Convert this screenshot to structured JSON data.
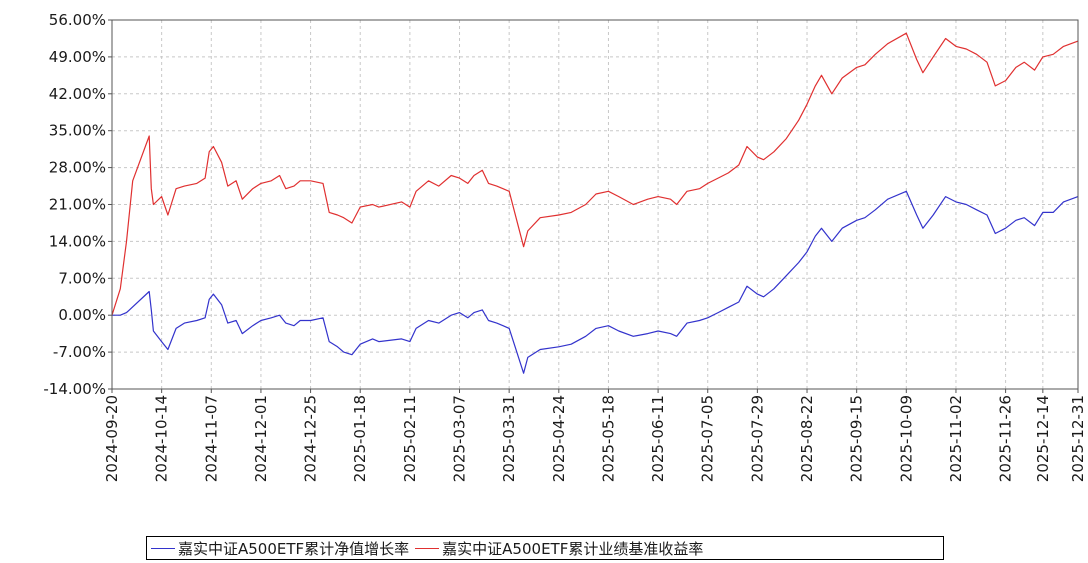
{
  "chart_data": {
    "type": "line",
    "title": "",
    "xlabel": "",
    "ylabel": "",
    "ylim": [
      -14,
      56
    ],
    "yticks": [
      "56.00%",
      "49.00%",
      "42.00%",
      "35.00%",
      "28.00%",
      "21.00%",
      "14.00%",
      "7.00%",
      "0.00%",
      "-7.00%",
      "-14.00%"
    ],
    "ytick_values": [
      56,
      49,
      42,
      35,
      28,
      21,
      14,
      7,
      0,
      -7,
      -14
    ],
    "xticks": [
      "2024-09-20",
      "2024-10-14",
      "2024-11-07",
      "2024-12-01",
      "2024-12-25",
      "2025-01-18",
      "2025-02-11",
      "2025-03-07",
      "2025-03-31",
      "2025-04-24",
      "2025-05-18",
      "2025-06-11",
      "2025-07-05",
      "2025-07-29",
      "2025-08-22",
      "2025-09-15",
      "2025-10-09",
      "2025-11-02",
      "2025-11-26",
      "2025-12-14",
      "2025-12-31"
    ],
    "x_start": "2024-09-20",
    "x_end": "2025-12-31",
    "grid": true,
    "legend_position": "bottom",
    "series": [
      {
        "name": "嘉实中证A500ETF累计净值增长率",
        "color": "#3333cc",
        "points": [
          [
            "2024-09-20",
            0.0
          ],
          [
            "2024-09-24",
            0.0
          ],
          [
            "2024-09-27",
            0.5
          ],
          [
            "2024-10-08",
            4.5
          ],
          [
            "2024-10-09",
            1.0
          ],
          [
            "2024-10-10",
            -3.0
          ],
          [
            "2024-10-14",
            -5.0
          ],
          [
            "2024-10-17",
            -6.5
          ],
          [
            "2024-10-21",
            -2.5
          ],
          [
            "2024-10-25",
            -1.5
          ],
          [
            "2024-10-31",
            -1.0
          ],
          [
            "2024-11-04",
            -0.5
          ],
          [
            "2024-11-06",
            3.0
          ],
          [
            "2024-11-08",
            4.0
          ],
          [
            "2024-11-12",
            2.0
          ],
          [
            "2024-11-15",
            -1.5
          ],
          [
            "2024-11-19",
            -1.0
          ],
          [
            "2024-11-22",
            -3.5
          ],
          [
            "2024-11-27",
            -2.0
          ],
          [
            "2024-12-01",
            -1.0
          ],
          [
            "2024-12-06",
            -0.5
          ],
          [
            "2024-12-10",
            0.0
          ],
          [
            "2024-12-13",
            -1.5
          ],
          [
            "2024-12-17",
            -2.0
          ],
          [
            "2024-12-20",
            -1.0
          ],
          [
            "2024-12-25",
            -1.0
          ],
          [
            "2024-12-31",
            -0.5
          ],
          [
            "2025-01-03",
            -5.0
          ],
          [
            "2025-01-07",
            -6.0
          ],
          [
            "2025-01-10",
            -7.0
          ],
          [
            "2025-01-14",
            -7.5
          ],
          [
            "2025-01-18",
            -5.5
          ],
          [
            "2025-01-24",
            -4.5
          ],
          [
            "2025-01-27",
            -5.0
          ],
          [
            "2025-02-07",
            -4.5
          ],
          [
            "2025-02-11",
            -5.0
          ],
          [
            "2025-02-14",
            -2.5
          ],
          [
            "2025-02-20",
            -1.0
          ],
          [
            "2025-02-25",
            -1.5
          ],
          [
            "2025-03-03",
            0.0
          ],
          [
            "2025-03-07",
            0.5
          ],
          [
            "2025-03-11",
            -0.5
          ],
          [
            "2025-03-14",
            0.5
          ],
          [
            "2025-03-18",
            1.0
          ],
          [
            "2025-03-21",
            -1.0
          ],
          [
            "2025-03-25",
            -1.5
          ],
          [
            "2025-03-28",
            -2.0
          ],
          [
            "2025-03-31",
            -2.5
          ],
          [
            "2025-04-07",
            -11.0
          ],
          [
            "2025-04-09",
            -8.0
          ],
          [
            "2025-04-15",
            -6.5
          ],
          [
            "2025-04-24",
            -6.0
          ],
          [
            "2025-04-30",
            -5.5
          ],
          [
            "2025-05-07",
            -4.0
          ],
          [
            "2025-05-12",
            -2.5
          ],
          [
            "2025-05-18",
            -2.0
          ],
          [
            "2025-05-23",
            -3.0
          ],
          [
            "2025-05-30",
            -4.0
          ],
          [
            "2025-06-06",
            -3.5
          ],
          [
            "2025-06-11",
            -3.0
          ],
          [
            "2025-06-17",
            -3.5
          ],
          [
            "2025-06-20",
            -4.0
          ],
          [
            "2025-06-25",
            -1.5
          ],
          [
            "2025-07-01",
            -1.0
          ],
          [
            "2025-07-05",
            -0.5
          ],
          [
            "2025-07-10",
            0.5
          ],
          [
            "2025-07-15",
            1.5
          ],
          [
            "2025-07-20",
            2.5
          ],
          [
            "2025-07-24",
            5.5
          ],
          [
            "2025-07-29",
            4.0
          ],
          [
            "2025-08-01",
            3.5
          ],
          [
            "2025-08-06",
            5.0
          ],
          [
            "2025-08-12",
            7.5
          ],
          [
            "2025-08-18",
            10.0
          ],
          [
            "2025-08-22",
            12.0
          ],
          [
            "2025-08-26",
            15.0
          ],
          [
            "2025-08-29",
            16.5
          ],
          [
            "2025-09-03",
            14.0
          ],
          [
            "2025-09-08",
            16.5
          ],
          [
            "2025-09-15",
            18.0
          ],
          [
            "2025-09-19",
            18.5
          ],
          [
            "2025-09-24",
            20.0
          ],
          [
            "2025-09-30",
            22.0
          ],
          [
            "2025-10-09",
            23.5
          ],
          [
            "2025-10-14",
            19.0
          ],
          [
            "2025-10-17",
            16.5
          ],
          [
            "2025-10-22",
            19.0
          ],
          [
            "2025-10-28",
            22.5
          ],
          [
            "2025-11-02",
            21.5
          ],
          [
            "2025-11-07",
            21.0
          ],
          [
            "2025-11-12",
            20.0
          ],
          [
            "2025-11-17",
            19.0
          ],
          [
            "2025-11-21",
            15.5
          ],
          [
            "2025-11-26",
            16.5
          ],
          [
            "2025-12-01",
            18.0
          ],
          [
            "2025-12-05",
            18.5
          ],
          [
            "2025-12-10",
            17.0
          ],
          [
            "2025-12-14",
            19.5
          ],
          [
            "2025-12-19",
            19.5
          ],
          [
            "2025-12-24",
            21.5
          ],
          [
            "2025-12-31",
            22.5
          ]
        ]
      },
      {
        "name": "嘉实中证A500ETF累计业绩基准收益率",
        "color": "#e03030",
        "points": [
          [
            "2024-09-20",
            0.0
          ],
          [
            "2024-09-24",
            5.0
          ],
          [
            "2024-09-27",
            14.0
          ],
          [
            "2024-09-30",
            25.5
          ],
          [
            "2024-10-08",
            34.0
          ],
          [
            "2024-10-09",
            24.0
          ],
          [
            "2024-10-10",
            21.0
          ],
          [
            "2024-10-14",
            22.5
          ],
          [
            "2024-10-17",
            19.0
          ],
          [
            "2024-10-21",
            24.0
          ],
          [
            "2024-10-25",
            24.5
          ],
          [
            "2024-10-31",
            25.0
          ],
          [
            "2024-11-04",
            26.0
          ],
          [
            "2024-11-06",
            31.0
          ],
          [
            "2024-11-08",
            32.0
          ],
          [
            "2024-11-12",
            29.0
          ],
          [
            "2024-11-15",
            24.5
          ],
          [
            "2024-11-19",
            25.5
          ],
          [
            "2024-11-22",
            22.0
          ],
          [
            "2024-11-27",
            24.0
          ],
          [
            "2024-12-01",
            25.0
          ],
          [
            "2024-12-06",
            25.5
          ],
          [
            "2024-12-10",
            26.5
          ],
          [
            "2024-12-13",
            24.0
          ],
          [
            "2024-12-17",
            24.5
          ],
          [
            "2024-12-20",
            25.5
          ],
          [
            "2024-12-25",
            25.5
          ],
          [
            "2024-12-31",
            25.0
          ],
          [
            "2025-01-03",
            19.5
          ],
          [
            "2025-01-07",
            19.0
          ],
          [
            "2025-01-10",
            18.5
          ],
          [
            "2025-01-14",
            17.5
          ],
          [
            "2025-01-18",
            20.5
          ],
          [
            "2025-01-24",
            21.0
          ],
          [
            "2025-01-27",
            20.5
          ],
          [
            "2025-02-07",
            21.5
          ],
          [
            "2025-02-11",
            20.5
          ],
          [
            "2025-02-14",
            23.5
          ],
          [
            "2025-02-20",
            25.5
          ],
          [
            "2025-02-25",
            24.5
          ],
          [
            "2025-03-03",
            26.5
          ],
          [
            "2025-03-07",
            26.0
          ],
          [
            "2025-03-11",
            25.0
          ],
          [
            "2025-03-14",
            26.5
          ],
          [
            "2025-03-18",
            27.5
          ],
          [
            "2025-03-21",
            25.0
          ],
          [
            "2025-03-25",
            24.5
          ],
          [
            "2025-03-28",
            24.0
          ],
          [
            "2025-03-31",
            23.5
          ],
          [
            "2025-04-07",
            13.0
          ],
          [
            "2025-04-09",
            16.0
          ],
          [
            "2025-04-15",
            18.5
          ],
          [
            "2025-04-24",
            19.0
          ],
          [
            "2025-04-30",
            19.5
          ],
          [
            "2025-05-07",
            21.0
          ],
          [
            "2025-05-12",
            23.0
          ],
          [
            "2025-05-18",
            23.5
          ],
          [
            "2025-05-23",
            22.5
          ],
          [
            "2025-05-30",
            21.0
          ],
          [
            "2025-06-06",
            22.0
          ],
          [
            "2025-06-11",
            22.5
          ],
          [
            "2025-06-17",
            22.0
          ],
          [
            "2025-06-20",
            21.0
          ],
          [
            "2025-06-25",
            23.5
          ],
          [
            "2025-07-01",
            24.0
          ],
          [
            "2025-07-05",
            25.0
          ],
          [
            "2025-07-10",
            26.0
          ],
          [
            "2025-07-15",
            27.0
          ],
          [
            "2025-07-20",
            28.5
          ],
          [
            "2025-07-24",
            32.0
          ],
          [
            "2025-07-29",
            30.0
          ],
          [
            "2025-08-01",
            29.5
          ],
          [
            "2025-08-06",
            31.0
          ],
          [
            "2025-08-12",
            33.5
          ],
          [
            "2025-08-18",
            37.0
          ],
          [
            "2025-08-22",
            40.0
          ],
          [
            "2025-08-26",
            43.5
          ],
          [
            "2025-08-29",
            45.5
          ],
          [
            "2025-09-03",
            42.0
          ],
          [
            "2025-09-08",
            45.0
          ],
          [
            "2025-09-15",
            47.0
          ],
          [
            "2025-09-19",
            47.5
          ],
          [
            "2025-09-24",
            49.5
          ],
          [
            "2025-09-30",
            51.5
          ],
          [
            "2025-10-09",
            53.5
          ],
          [
            "2025-10-14",
            48.5
          ],
          [
            "2025-10-17",
            46.0
          ],
          [
            "2025-10-22",
            49.0
          ],
          [
            "2025-10-28",
            52.5
          ],
          [
            "2025-11-02",
            51.0
          ],
          [
            "2025-11-07",
            50.5
          ],
          [
            "2025-11-12",
            49.5
          ],
          [
            "2025-11-17",
            48.0
          ],
          [
            "2025-11-21",
            43.5
          ],
          [
            "2025-11-26",
            44.5
          ],
          [
            "2025-12-01",
            47.0
          ],
          [
            "2025-12-05",
            48.0
          ],
          [
            "2025-12-10",
            46.5
          ],
          [
            "2025-12-14",
            49.0
          ],
          [
            "2025-12-19",
            49.5
          ],
          [
            "2025-12-24",
            51.0
          ],
          [
            "2025-12-31",
            52.0
          ]
        ]
      }
    ]
  }
}
